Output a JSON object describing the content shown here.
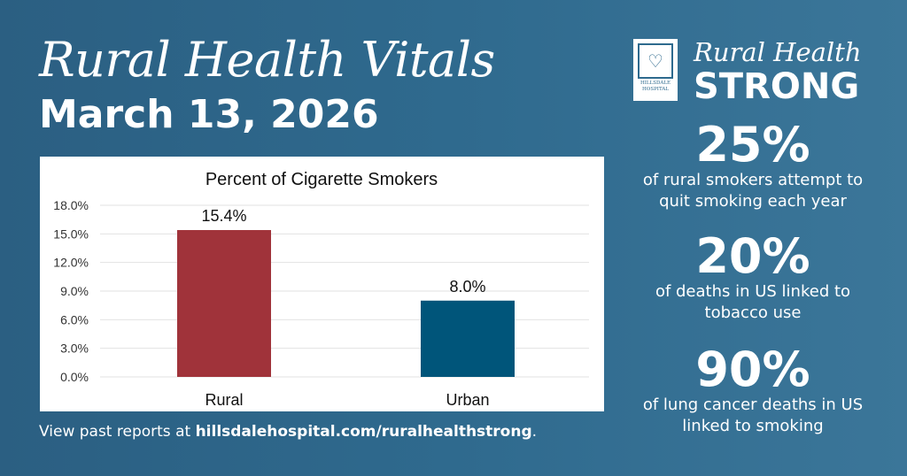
{
  "header": {
    "title": "Rural Health Vitals",
    "date": "March 13, 2026"
  },
  "brand": {
    "logo_text": "HILLSDALE HOSPITAL",
    "line1": "Rural Health",
    "line2": "STRONG"
  },
  "footer": {
    "prefix": "View past reports at ",
    "link": "hillsdalehospital.com/ruralhealthstrong",
    "suffix": "."
  },
  "stats": [
    {
      "value": "25%",
      "text": "of rural smokers attempt to quit smoking each year"
    },
    {
      "value": "20%",
      "text": "of deaths in US linked to tobacco use"
    },
    {
      "value": "90%",
      "text": "of lung cancer deaths in US linked to smoking"
    }
  ],
  "chart_data": {
    "type": "bar",
    "title": "Percent of Cigarette Smokers",
    "categories": [
      "Rural",
      "Urban"
    ],
    "values": [
      15.4,
      8.0
    ],
    "data_labels": [
      "15.4%",
      "8.0%"
    ],
    "colors": [
      "#a0333a",
      "#00557a"
    ],
    "ylim": [
      0,
      18
    ],
    "yticks": [
      "0.0%",
      "3.0%",
      "6.0%",
      "9.0%",
      "12.0%",
      "15.0%",
      "18.0%"
    ],
    "grid": true,
    "xlabel": "",
    "ylabel": ""
  }
}
